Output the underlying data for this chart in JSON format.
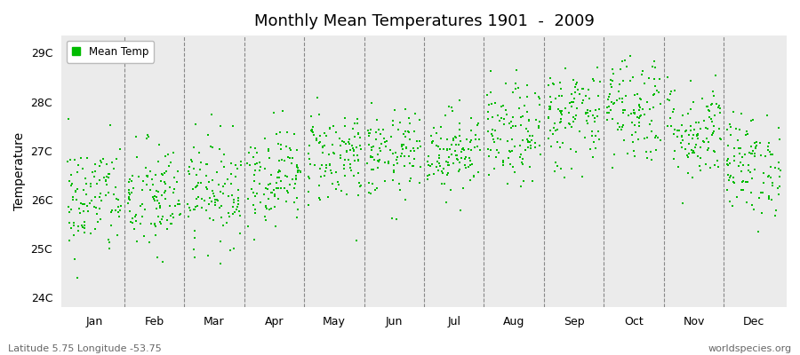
{
  "title": "Monthly Mean Temperatures 1901  -  2009",
  "ylabel": "Temperature",
  "xlabel_months": [
    "Jan",
    "Feb",
    "Mar",
    "Apr",
    "May",
    "Jun",
    "Jul",
    "Aug",
    "Sep",
    "Oct",
    "Nov",
    "Dec"
  ],
  "ylim": [
    23.8,
    29.35
  ],
  "yticks": [
    24,
    25,
    26,
    27,
    28,
    29
  ],
  "ytick_labels": [
    "24C",
    "25C",
    "26C",
    "27C",
    "28C",
    "29C"
  ],
  "dot_color": "#00BB00",
  "bg_color": "#EBEBEB",
  "fig_color": "#FFFFFF",
  "legend_label": "Mean Temp",
  "footer_left": "Latitude 5.75 Longitude -53.75",
  "footer_right": "worldspecies.org",
  "n_years": 109,
  "month_means": [
    26.0,
    26.0,
    26.2,
    26.5,
    26.9,
    26.9,
    27.0,
    27.3,
    27.7,
    27.9,
    27.4,
    26.7
  ],
  "month_stds": [
    0.6,
    0.6,
    0.55,
    0.5,
    0.5,
    0.45,
    0.42,
    0.52,
    0.55,
    0.58,
    0.52,
    0.52
  ],
  "seed": 42
}
